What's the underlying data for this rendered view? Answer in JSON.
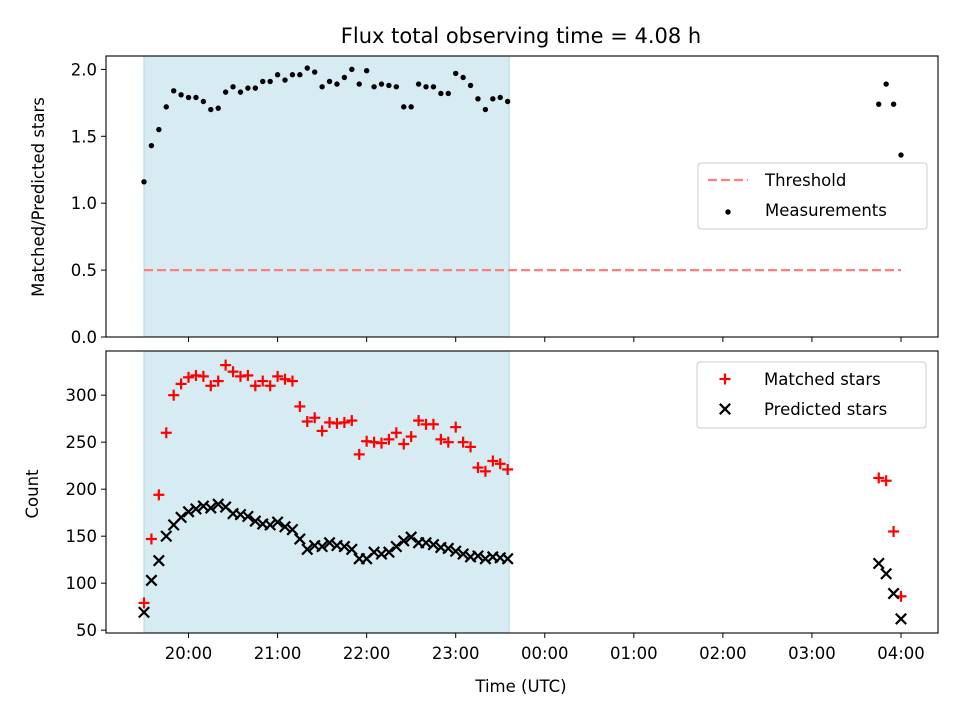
{
  "figure": {
    "title": "Flux total observing time = 4.08 h",
    "xlabel": "Time (UTC)",
    "x_ticks": [
      "20:00",
      "21:00",
      "22:00",
      "23:00",
      "00:00",
      "01:00",
      "02:00",
      "03:00",
      "04:00"
    ],
    "shaded_span": {
      "start": "19:30",
      "end": "23:36",
      "color": "#add8e6"
    }
  },
  "chart_data": [
    {
      "type": "scatter",
      "panel": "top",
      "ylabel": "Matched/Predicted stars",
      "ylim": [
        0.0,
        2.1
      ],
      "y_ticks": [
        "0.0",
        "0.5",
        "1.0",
        "1.5",
        "2.0"
      ],
      "legend_position": "center-right",
      "series": [
        {
          "name": "Threshold",
          "kind": "dashed-line",
          "color": "#ff7f7f",
          "x": [
            "19:30",
            "04:00"
          ],
          "y": [
            0.5,
            0.5
          ]
        },
        {
          "name": "Measurements",
          "kind": "dots",
          "color": "#000000",
          "x": [
            "19:30",
            "19:35",
            "19:40",
            "19:45",
            "19:50",
            "19:55",
            "20:00",
            "20:05",
            "20:10",
            "20:15",
            "20:20",
            "20:25",
            "20:30",
            "20:35",
            "20:40",
            "20:45",
            "20:50",
            "20:55",
            "21:00",
            "21:05",
            "21:10",
            "21:15",
            "21:20",
            "21:25",
            "21:30",
            "21:35",
            "21:40",
            "21:45",
            "21:50",
            "21:55",
            "22:00",
            "22:05",
            "22:10",
            "22:15",
            "22:20",
            "22:25",
            "22:30",
            "22:35",
            "22:40",
            "22:45",
            "22:50",
            "22:55",
            "23:00",
            "23:05",
            "23:10",
            "23:15",
            "23:20",
            "23:25",
            "23:30",
            "23:35",
            "03:45",
            "03:50",
            "03:55",
            "04:00"
          ],
          "y": [
            1.16,
            1.43,
            1.55,
            1.72,
            1.84,
            1.81,
            1.79,
            1.79,
            1.76,
            1.7,
            1.71,
            1.83,
            1.87,
            1.83,
            1.86,
            1.86,
            1.91,
            1.91,
            1.96,
            1.92,
            1.96,
            1.96,
            2.01,
            1.98,
            1.87,
            1.91,
            1.89,
            1.94,
            2.0,
            1.89,
            1.99,
            1.87,
            1.89,
            1.88,
            1.87,
            1.72,
            1.72,
            1.89,
            1.87,
            1.87,
            1.82,
            1.82,
            1.97,
            1.94,
            1.88,
            1.78,
            1.7,
            1.78,
            1.79,
            1.76,
            1.74,
            1.89,
            1.74,
            1.36
          ]
        }
      ]
    },
    {
      "type": "scatter",
      "panel": "bottom",
      "ylabel": "Count",
      "ylim": [
        47,
        347
      ],
      "y_ticks": [
        "50",
        "100",
        "150",
        "200",
        "250",
        "300"
      ],
      "legend_position": "top-right",
      "series": [
        {
          "name": "Matched stars",
          "marker": "+",
          "color": "#ff0000",
          "x": [
            "19:30",
            "19:35",
            "19:40",
            "19:45",
            "19:50",
            "19:55",
            "20:00",
            "20:05",
            "20:10",
            "20:15",
            "20:20",
            "20:25",
            "20:30",
            "20:35",
            "20:40",
            "20:45",
            "20:50",
            "20:55",
            "21:00",
            "21:05",
            "21:10",
            "21:15",
            "21:20",
            "21:25",
            "21:30",
            "21:35",
            "21:40",
            "21:45",
            "21:50",
            "21:55",
            "22:00",
            "22:05",
            "22:10",
            "22:15",
            "22:20",
            "22:25",
            "22:30",
            "22:35",
            "22:40",
            "22:45",
            "22:50",
            "22:55",
            "23:00",
            "23:05",
            "23:10",
            "23:15",
            "23:20",
            "23:25",
            "23:30",
            "23:35",
            "03:45",
            "03:50",
            "03:55",
            "04:00"
          ],
          "y": [
            79,
            147,
            194,
            260,
            300,
            312,
            319,
            321,
            320,
            310,
            315,
            332,
            325,
            320,
            321,
            310,
            315,
            310,
            320,
            317,
            315,
            288,
            272,
            276,
            262,
            271,
            270,
            271,
            273,
            237,
            251,
            250,
            249,
            253,
            260,
            248,
            256,
            273,
            269,
            269,
            253,
            250,
            266,
            250,
            245,
            223,
            219,
            230,
            227,
            221,
            212,
            209,
            155,
            86
          ]
        },
        {
          "name": "Predicted stars",
          "marker": "x",
          "color": "#000000",
          "x": [
            "19:30",
            "19:35",
            "19:40",
            "19:45",
            "19:50",
            "19:55",
            "20:00",
            "20:05",
            "20:10",
            "20:15",
            "20:20",
            "20:25",
            "20:30",
            "20:35",
            "20:40",
            "20:45",
            "20:50",
            "20:55",
            "21:00",
            "21:05",
            "21:10",
            "21:15",
            "21:20",
            "21:25",
            "21:30",
            "21:35",
            "21:40",
            "21:45",
            "21:50",
            "21:55",
            "22:00",
            "22:05",
            "22:10",
            "22:15",
            "22:20",
            "22:25",
            "22:30",
            "22:35",
            "22:40",
            "22:45",
            "22:50",
            "22:55",
            "23:00",
            "23:05",
            "23:10",
            "23:15",
            "23:20",
            "23:25",
            "23:30",
            "23:35",
            "03:45",
            "03:50",
            "03:55",
            "04:00"
          ],
          "y": [
            69,
            103,
            124,
            150,
            162,
            170,
            176,
            179,
            182,
            180,
            184,
            181,
            174,
            173,
            171,
            166,
            163,
            162,
            165,
            160,
            157,
            147,
            136,
            140,
            139,
            143,
            140,
            139,
            136,
            126,
            126,
            133,
            131,
            133,
            139,
            145,
            149,
            143,
            143,
            141,
            138,
            137,
            134,
            131,
            128,
            129,
            126,
            128,
            127,
            126,
            121,
            110,
            89,
            62
          ]
        }
      ]
    }
  ]
}
